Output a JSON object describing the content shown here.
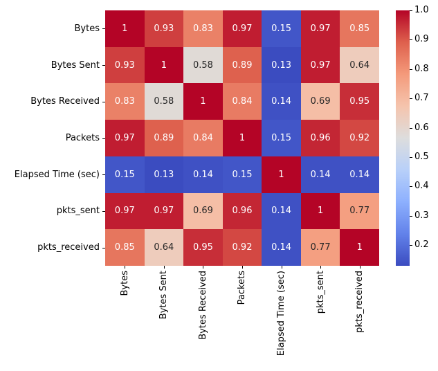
{
  "chart_data": {
    "type": "heatmap",
    "title": "",
    "xlabel": "",
    "ylabel": "",
    "labels": [
      "Bytes",
      "Bytes Sent",
      "Bytes Received",
      "Packets",
      "Elapsed Time (sec)",
      "pkts_sent",
      "pkts_received"
    ],
    "matrix": [
      [
        1,
        0.93,
        0.83,
        0.97,
        0.15,
        0.97,
        0.85
      ],
      [
        0.93,
        1,
        0.58,
        0.89,
        0.13,
        0.97,
        0.64
      ],
      [
        0.83,
        0.58,
        1,
        0.84,
        0.14,
        0.69,
        0.95
      ],
      [
        0.97,
        0.89,
        0.84,
        1,
        0.15,
        0.96,
        0.92
      ],
      [
        0.15,
        0.13,
        0.14,
        0.15,
        1,
        0.14,
        0.14
      ],
      [
        0.97,
        0.97,
        0.69,
        0.96,
        0.14,
        1,
        0.77
      ],
      [
        0.85,
        0.64,
        0.95,
        0.92,
        0.14,
        0.77,
        1
      ]
    ],
    "colorbar": {
      "position": "right",
      "vmin": 0.13,
      "vmax": 1.0,
      "tick_values": [
        1.0,
        0.9,
        0.8,
        0.7,
        0.6,
        0.5,
        0.4,
        0.3,
        0.2
      ],
      "tick_labels": [
        "1.0",
        "0.9",
        "0.8",
        "0.7",
        "0.6",
        "0.5",
        "0.4",
        "0.3",
        "0.2"
      ]
    },
    "colormap": {
      "name": "coolwarm",
      "anchors": [
        "#3b4cc0",
        "#6282ea",
        "#8db0fe",
        "#b8d0f9",
        "#dddddd",
        "#f5c4ad",
        "#f49a7b",
        "#de604d",
        "#b40426"
      ]
    },
    "annotation_text_dark": "#262626",
    "annotation_text_light": "#ffffff",
    "grid": false,
    "legend": false
  }
}
